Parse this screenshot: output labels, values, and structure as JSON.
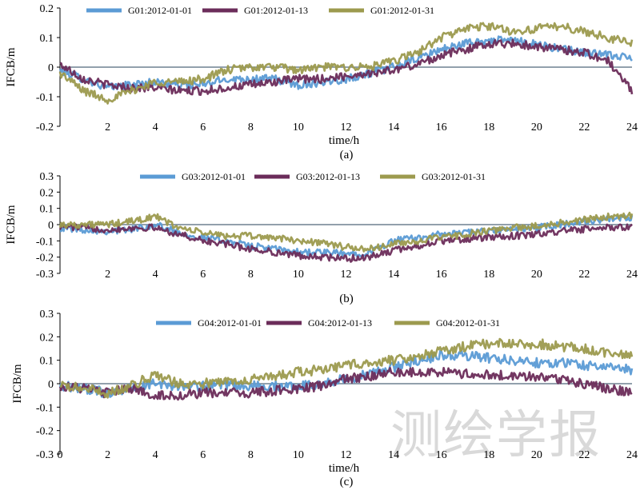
{
  "watermark": "测绘学报",
  "chart_data": [
    {
      "type": "line",
      "panel_label": "(a)",
      "xlabel": "time/h",
      "ylabel": "IFCB/m",
      "xlim": [
        0,
        24
      ],
      "ylim": [
        -0.2,
        0.2
      ],
      "xticks": [
        "2",
        "4",
        "6",
        "8",
        "10",
        "12",
        "14",
        "16",
        "18",
        "20",
        "22",
        "24"
      ],
      "yticks": [
        "0.2",
        "0.1",
        "0",
        "-0.1",
        "-0.2"
      ],
      "legend_position": "top",
      "x": [
        0,
        1,
        2,
        3,
        4,
        5,
        6,
        7,
        8,
        9,
        10,
        11,
        12,
        13,
        14,
        15,
        16,
        17,
        18,
        19,
        20,
        21,
        22,
        23,
        24
      ],
      "series": [
        {
          "name": "G01:2012-01-01",
          "color": "#5B9BD5",
          "values": [
            -0.01,
            -0.04,
            -0.07,
            -0.06,
            -0.05,
            -0.06,
            -0.06,
            -0.04,
            -0.04,
            -0.04,
            -0.06,
            -0.05,
            -0.04,
            -0.02,
            0.0,
            0.03,
            0.06,
            0.08,
            0.09,
            0.09,
            0.08,
            0.06,
            0.05,
            0.04,
            0.03
          ]
        },
        {
          "name": "G01:2012-01-13",
          "color": "#6B2C5A",
          "values": [
            0.01,
            -0.04,
            -0.06,
            -0.07,
            -0.07,
            -0.08,
            -0.08,
            -0.07,
            -0.06,
            -0.05,
            -0.04,
            -0.04,
            -0.03,
            -0.02,
            -0.01,
            0.01,
            0.04,
            0.06,
            0.08,
            0.08,
            0.07,
            0.06,
            0.05,
            0.02,
            -0.08
          ]
        },
        {
          "name": "G01:2012-01-31",
          "color": "#9C9A4E",
          "values": [
            -0.02,
            -0.08,
            -0.11,
            -0.08,
            -0.05,
            -0.05,
            -0.04,
            -0.01,
            0.0,
            0.0,
            -0.01,
            0.0,
            0.0,
            0.0,
            0.02,
            0.05,
            0.1,
            0.13,
            0.14,
            0.12,
            0.13,
            0.14,
            0.12,
            0.1,
            0.08
          ]
        }
      ]
    },
    {
      "type": "line",
      "panel_label": "(b)",
      "xlabel": "",
      "ylabel": "IFCB/m",
      "xlim": [
        0,
        24
      ],
      "ylim": [
        -0.3,
        0.3
      ],
      "xticks": [
        "2",
        "4",
        "6",
        "8",
        "10",
        "12",
        "14",
        "16",
        "18",
        "20",
        "22",
        "24"
      ],
      "yticks": [
        "0.3",
        "0.2",
        "0.1",
        "0",
        "-0.1",
        "-0.2",
        "-0.3"
      ],
      "legend_position": "top",
      "x": [
        0,
        1,
        2,
        3,
        4,
        5,
        6,
        7,
        8,
        9,
        10,
        11,
        12,
        13,
        14,
        15,
        16,
        17,
        18,
        19,
        20,
        21,
        22,
        23,
        24
      ],
      "series": [
        {
          "name": "G03:2012-01-01",
          "color": "#5B9BD5",
          "values": [
            -0.02,
            -0.03,
            -0.04,
            -0.03,
            0.0,
            -0.05,
            -0.08,
            -0.1,
            -0.13,
            -0.15,
            -0.17,
            -0.17,
            -0.18,
            -0.17,
            -0.1,
            -0.08,
            -0.06,
            -0.05,
            -0.04,
            -0.03,
            -0.02,
            0.0,
            0.02,
            0.03,
            0.04
          ]
        },
        {
          "name": "G03:2012-01-13",
          "color": "#6B2C5A",
          "values": [
            -0.01,
            -0.02,
            -0.03,
            -0.02,
            -0.02,
            -0.06,
            -0.1,
            -0.12,
            -0.15,
            -0.17,
            -0.19,
            -0.2,
            -0.21,
            -0.2,
            -0.16,
            -0.13,
            -0.1,
            -0.09,
            -0.08,
            -0.07,
            -0.06,
            -0.04,
            -0.03,
            -0.02,
            -0.01
          ]
        },
        {
          "name": "G03:2012-01-31",
          "color": "#9C9A4E",
          "values": [
            0.0,
            0.0,
            0.0,
            0.02,
            0.05,
            -0.02,
            -0.05,
            -0.07,
            -0.07,
            -0.08,
            -0.1,
            -0.11,
            -0.14,
            -0.15,
            -0.12,
            -0.1,
            -0.08,
            -0.06,
            -0.04,
            -0.02,
            -0.01,
            0.01,
            0.03,
            0.05,
            0.06
          ]
        }
      ]
    },
    {
      "type": "line",
      "panel_label": "(c)",
      "xlabel": "time/h",
      "ylabel": "IFCB/m",
      "xlim": [
        0,
        24
      ],
      "ylim": [
        -0.3,
        0.3
      ],
      "xticks": [
        "0",
        "2",
        "4",
        "6",
        "8",
        "10",
        "12",
        "14",
        "16",
        "18",
        "20",
        "22",
        "24"
      ],
      "yticks": [
        "0.3",
        "0.2",
        "0.1",
        "0",
        "-0.1",
        "-0.2",
        "-0.3"
      ],
      "legend_position": "top",
      "x": [
        0,
        1,
        2,
        3,
        4,
        5,
        6,
        7,
        8,
        9,
        10,
        11,
        12,
        13,
        14,
        15,
        16,
        17,
        18,
        19,
        20,
        21,
        22,
        23,
        24
      ],
      "series": [
        {
          "name": "G04:2012-01-01",
          "color": "#5B9BD5",
          "values": [
            -0.01,
            -0.02,
            -0.04,
            -0.02,
            0.0,
            -0.01,
            -0.01,
            -0.01,
            -0.01,
            -0.01,
            -0.01,
            0.0,
            0.02,
            0.04,
            0.07,
            0.1,
            0.12,
            0.12,
            0.11,
            0.1,
            0.09,
            0.09,
            0.08,
            0.07,
            0.06
          ]
        },
        {
          "name": "G04:2012-01-13",
          "color": "#6B2C5A",
          "values": [
            -0.01,
            -0.02,
            -0.04,
            -0.02,
            -0.05,
            -0.05,
            -0.04,
            -0.04,
            -0.04,
            -0.03,
            -0.02,
            -0.01,
            0.02,
            0.03,
            0.05,
            0.05,
            0.05,
            0.04,
            0.04,
            0.03,
            0.03,
            0.02,
            0.0,
            -0.02,
            -0.04
          ]
        },
        {
          "name": "G04:2012-01-31",
          "color": "#9C9A4E",
          "values": [
            -0.01,
            -0.02,
            -0.04,
            -0.01,
            0.04,
            0.0,
            0.0,
            0.01,
            0.02,
            0.03,
            0.05,
            0.06,
            0.08,
            0.09,
            0.1,
            0.12,
            0.14,
            0.16,
            0.17,
            0.17,
            0.17,
            0.16,
            0.15,
            0.13,
            0.12
          ]
        }
      ]
    }
  ]
}
